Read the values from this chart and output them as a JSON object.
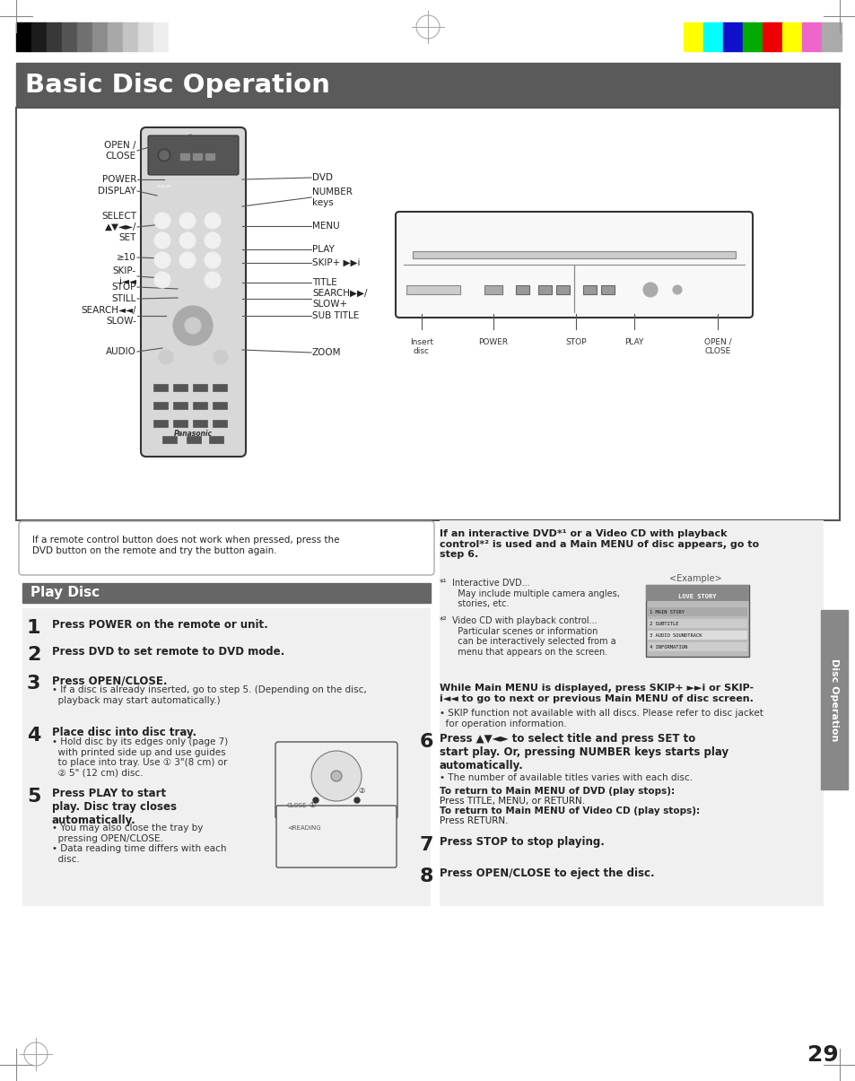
{
  "bg_color": "#ffffff",
  "header_bar_color": "#5a5a5a",
  "header_text": "Basic Disc Operation",
  "header_text_color": "#ffffff",
  "section_bar_color": "#666666",
  "section_text": "Play Disc",
  "section_text_color": "#ffffff",
  "side_tab_color": "#888888",
  "side_tab_text": "Disc Operation",
  "page_number": "29",
  "color_bars_left": [
    "#000000",
    "#1c1c1c",
    "#383838",
    "#545454",
    "#707070",
    "#8c8c8c",
    "#a8a8a8",
    "#c4c4c4",
    "#dddddd",
    "#eeeeee",
    "#ffffff"
  ],
  "color_bars_right": [
    "#ffff00",
    "#00ffff",
    "#1010cc",
    "#00aa00",
    "#ee0000",
    "#ffff00",
    "#ee66cc",
    "#aaaaaa"
  ],
  "note_box_text": "If a remote control button does not work when pressed, press the\nDVD button on the remote and try the button again.",
  "right_panel_intro_bold": "If an interactive DVD*¹ or a Video CD with playback\ncontrol*² is used and a Main MENU of disc appears, go to\nstep 6.",
  "footnote1_star": "*¹",
  "footnote1_text": "Interactive DVD...\n  May include multiple camera angles,\n  stories, etc.",
  "footnote2_star": "*²",
  "footnote2_text": "Video CD with playback control...\n  Particular scenes or information\n  can be interactively selected from a\n  menu that appears on the screen.",
  "example_label": "<Example>",
  "while_bold": "While Main MENU is displayed, press SKIP+ ►►i or SKIP-\ni◄◄ to go to next or previous Main MENU of disc screen.",
  "while_detail": "• SKIP function not available with all discs. Please refer to disc jacket\n  for operation information.",
  "step6_bold": "Press ▲▼◄► to select title and press SET to\nstart play. Or, pressing NUMBER keys starts play\nautomatically.",
  "step6_detail1": "• The number of available titles varies with each disc.",
  "step6_detail2": "To return to Main MENU of DVD (play stops):\nPress TITLE, MENU, or RETURN.\nTo return to Main MENU of Video CD (play stops):\nPress RETURN.",
  "step7_bold": "Press STOP to stop playing.",
  "step8_bold": "Press OPEN/CLOSE to eject the disc.",
  "step1_bold": "Press POWER on the remote or unit.",
  "step2_bold": "Press DVD to set remote to DVD mode.",
  "step3_bold": "Press OPEN/CLOSE.",
  "step3_detail": "• If a disc is already inserted, go to step 5. (Depending on the disc,\n  playback may start automatically.)",
  "step4_bold": "Place disc into disc tray.",
  "step4_detail": "• Hold disc by its edges only (page 7)\n  with printed side up and use guides\n  to place into tray. Use ① 3\"(8 cm) or\n  ② 5\" (12 cm) disc.",
  "step5_bold": "Press PLAY to start\nplay. Disc tray closes\nautomatically.",
  "step5_detail": "• You may also close the tray by\n  pressing OPEN/CLOSE.\n• Data reading time differs with each\n  disc.",
  "dvd_front_labels": [
    "Insert\ndisc",
    "POWER",
    "STOP",
    "PLAY",
    "OPEN /\nCLOSE"
  ]
}
